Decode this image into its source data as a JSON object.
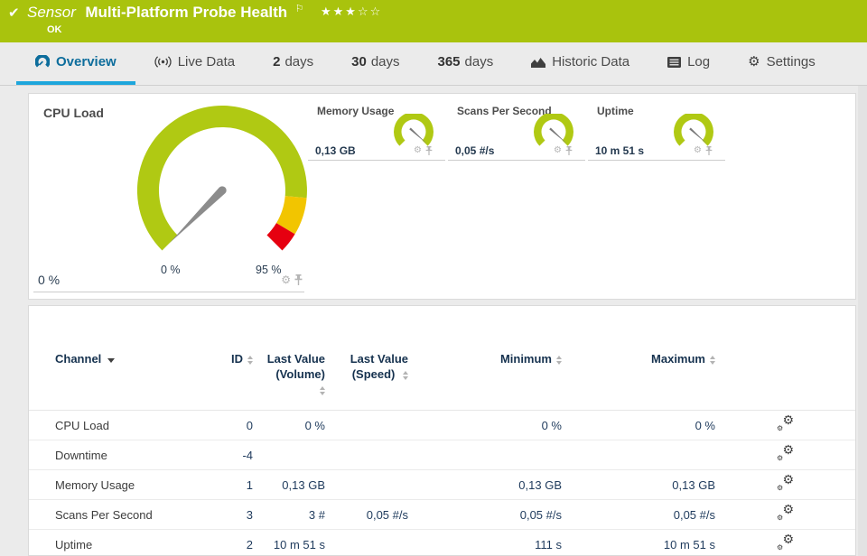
{
  "header": {
    "status_icon": "check-icon",
    "kind_label": "Sensor",
    "title": "Multi-Platform Probe Health",
    "status": "OK",
    "flag_icon": "flag-icon",
    "rating_filled": 3,
    "rating_total": 5
  },
  "tabs": [
    {
      "id": "overview",
      "label": "Overview",
      "icon": "gauge-icon",
      "active": true
    },
    {
      "id": "live-data",
      "label": "Live Data",
      "icon": "broadcast-icon"
    },
    {
      "id": "2-days",
      "prefix": "2",
      "label": "days"
    },
    {
      "id": "30-days",
      "prefix": "30",
      "label": "days"
    },
    {
      "id": "365-days",
      "prefix": "365",
      "label": "days"
    },
    {
      "id": "historic-data",
      "label": "Historic Data",
      "icon": "area-chart-icon"
    },
    {
      "id": "log",
      "label": "Log",
      "icon": "log-icon"
    },
    {
      "id": "settings",
      "label": "Settings",
      "icon": "gear-icon"
    }
  ],
  "gauges": {
    "primary": {
      "title": "CPU Load",
      "value": "0 %",
      "scale_start_label": "0 %",
      "scale_end_label": "95 %"
    },
    "mini": [
      {
        "title": "Memory Usage",
        "value": "0,13 GB"
      },
      {
        "title": "Scans Per Second",
        "value": "0,05 #/s"
      },
      {
        "title": "Uptime",
        "value": "10 m 51 s"
      }
    ]
  },
  "table": {
    "columns": [
      {
        "id": "channel",
        "label": "Channel",
        "sorted": "desc",
        "align": "left"
      },
      {
        "id": "id",
        "label": "ID",
        "sortable": true
      },
      {
        "id": "last-value-volume",
        "label": "Last Value (Volume)",
        "lines": [
          "Last Value",
          "(Volume)"
        ],
        "sortable": true,
        "arrow_below": true
      },
      {
        "id": "last-value-speed",
        "label": "Last Value (Speed)",
        "lines": [
          "Last Value",
          "(Speed)"
        ],
        "sortable": true
      },
      {
        "id": "minimum",
        "label": "Minimum",
        "sortable": true
      },
      {
        "id": "maximum",
        "label": "Maximum",
        "sortable": true
      },
      {
        "id": "edit",
        "label": "",
        "icon": "gears-icon"
      }
    ],
    "rows": [
      {
        "channel": "CPU Load",
        "id": "0",
        "last_value_volume": "0 %",
        "last_value_speed": "",
        "minimum": "0 %",
        "maximum": "0 %"
      },
      {
        "channel": "Downtime",
        "id": "-4",
        "last_value_volume": "",
        "last_value_speed": "",
        "minimum": "",
        "maximum": ""
      },
      {
        "channel": "Memory Usage",
        "id": "1",
        "last_value_volume": "0,13 GB",
        "last_value_speed": "",
        "minimum": "0,13 GB",
        "maximum": "0,13 GB"
      },
      {
        "channel": "Scans Per Second",
        "id": "3",
        "last_value_volume": "3 #",
        "last_value_speed": "0,05 #/s",
        "minimum": "0,05 #/s",
        "maximum": "0,05 #/s"
      },
      {
        "channel": "Uptime",
        "id": "2",
        "last_value_volume": "10 m 51 s",
        "last_value_speed": "",
        "minimum": "111 s",
        "maximum": "10 m 51 s"
      }
    ]
  },
  "colors": {
    "header_bg": "#a9c30d",
    "gauge_ok": "#b0c913",
    "gauge_warning": "#f2c500",
    "gauge_error": "#e60010",
    "tab_active_text": "#0d6d9c",
    "tab_active_underline": "#1ea6dc",
    "table_value_text": "#1e3a5c"
  }
}
